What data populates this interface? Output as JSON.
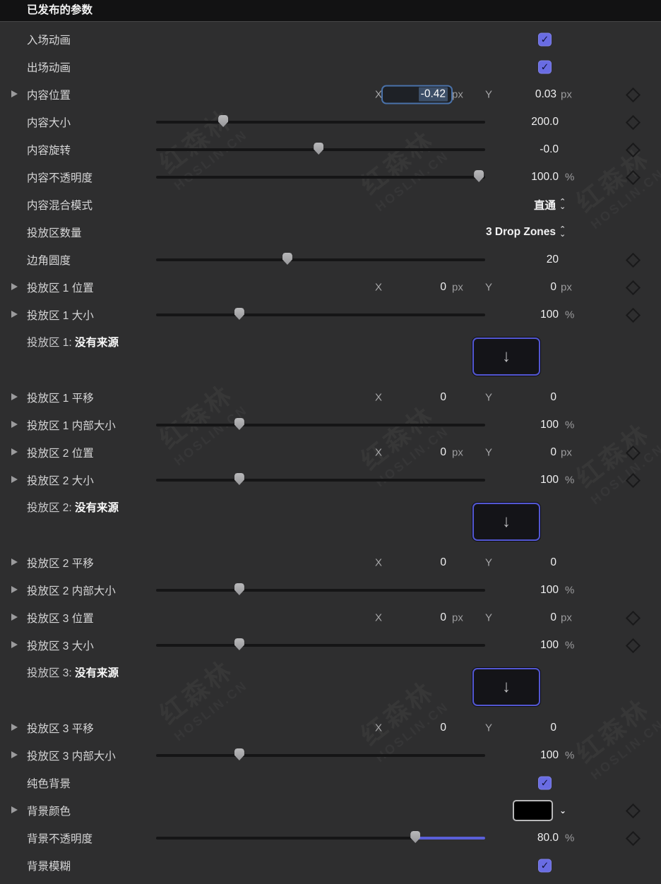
{
  "header": {
    "title": "已发布的参数"
  },
  "icons": {
    "check": "✓",
    "down_arrow": "↓",
    "chevron_up": "⌃",
    "chevron_down": "⌄",
    "swatch_chevron": "⌄"
  },
  "watermark": {
    "line1": "红森林",
    "line2": "HOSLIN.CN"
  },
  "colors": {
    "accent_checkbox": "#696ce3",
    "accent_slider_fill": "#5a5fd8",
    "focus_ring": "#4a72aa",
    "selection": "#3d4f68",
    "background": "#2e2e2f",
    "swatch_color": "#000000"
  },
  "rows": [
    {
      "type": "checkbox",
      "label": "入场动画",
      "checked": true
    },
    {
      "type": "checkbox",
      "label": "出场动画",
      "checked": true
    },
    {
      "type": "xy",
      "label": "内容位置",
      "disclosure": true,
      "x": "-0.42",
      "y": "0.03",
      "unit": "px",
      "keyframe": true,
      "x_focused": true
    },
    {
      "type": "slider",
      "label": "内容大小",
      "value": "200.0",
      "unit": "",
      "pct": 20.4,
      "keyframe": true
    },
    {
      "type": "slider",
      "label": "内容旋转",
      "value": "-0.0",
      "unit": "",
      "pct": 49.4,
      "keyframe": true
    },
    {
      "type": "slider",
      "label": "内容不透明度",
      "value": "100.0",
      "unit": "%",
      "pct": 98.1,
      "keyframe": true
    },
    {
      "type": "popup",
      "label": "内容混合模式",
      "value": "直通"
    },
    {
      "type": "popup",
      "label": "投放区数量",
      "value": "3 Drop Zones"
    },
    {
      "type": "slider",
      "label": "边角圆度",
      "value": "20",
      "unit": "",
      "pct": 39.9,
      "keyframe": true
    },
    {
      "type": "xy",
      "label": "投放区 1 位置",
      "disclosure": true,
      "x": "0",
      "y": "0",
      "unit": "px",
      "keyframe": true
    },
    {
      "type": "slider",
      "label": "投放区 1 大小",
      "disclosure": true,
      "value": "100",
      "unit": "%",
      "pct": 25.3,
      "keyframe": true
    },
    {
      "type": "source",
      "label_prefix": "投放区 1:",
      "label_value": "没有来源"
    },
    {
      "type": "xy",
      "label": "投放区 1 平移",
      "disclosure": true,
      "x": "0",
      "y": "0",
      "unit": ""
    },
    {
      "type": "slider",
      "label": "投放区 1 内部大小",
      "disclosure": true,
      "value": "100",
      "unit": "%",
      "pct": 25.3
    },
    {
      "type": "xy",
      "label": "投放区 2 位置",
      "disclosure": true,
      "x": "0",
      "y": "0",
      "unit": "px",
      "keyframe": true
    },
    {
      "type": "slider",
      "label": "投放区 2 大小",
      "disclosure": true,
      "value": "100",
      "unit": "%",
      "pct": 25.3,
      "keyframe": true
    },
    {
      "type": "source",
      "label_prefix": "投放区 2:",
      "label_value": "没有来源"
    },
    {
      "type": "xy",
      "label": "投放区 2 平移",
      "disclosure": true,
      "x": "0",
      "y": "0",
      "unit": ""
    },
    {
      "type": "slider",
      "label": "投放区 2 内部大小",
      "disclosure": true,
      "value": "100",
      "unit": "%",
      "pct": 25.3
    },
    {
      "type": "xy",
      "label": "投放区 3 位置",
      "disclosure": true,
      "x": "0",
      "y": "0",
      "unit": "px",
      "keyframe": true
    },
    {
      "type": "slider",
      "label": "投放区 3 大小",
      "disclosure": true,
      "value": "100",
      "unit": "%",
      "pct": 25.3,
      "keyframe": true
    },
    {
      "type": "source",
      "label_prefix": "投放区 3:",
      "label_value": "没有来源"
    },
    {
      "type": "xy",
      "label": "投放区 3 平移",
      "disclosure": true,
      "x": "0",
      "y": "0",
      "unit": ""
    },
    {
      "type": "slider",
      "label": "投放区 3 内部大小",
      "disclosure": true,
      "value": "100",
      "unit": "%",
      "pct": 25.3
    },
    {
      "type": "checkbox",
      "label": "纯色背景",
      "checked": true
    },
    {
      "type": "color",
      "label": "背景颜色",
      "disclosure": true,
      "swatch": "#000000",
      "keyframe": true
    },
    {
      "type": "slider",
      "label": "背景不透明度",
      "value": "80.0",
      "unit": "%",
      "pct": 78.8,
      "keyframe": true,
      "fill_right": true
    },
    {
      "type": "checkbox",
      "label": "背景模糊",
      "checked": true
    }
  ]
}
